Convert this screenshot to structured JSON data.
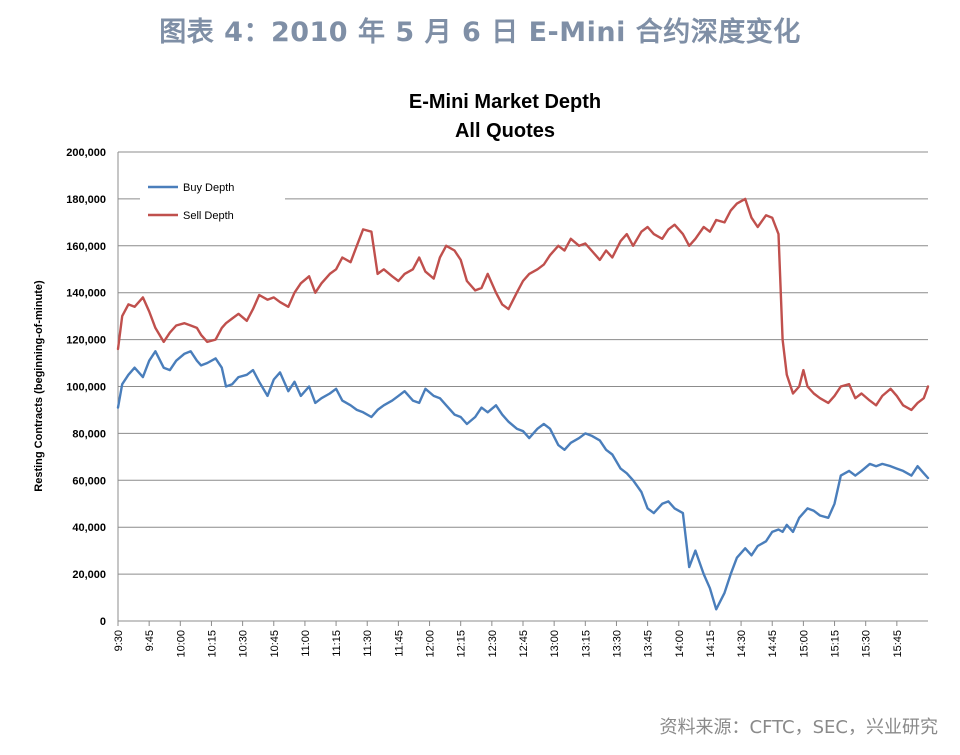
{
  "figure_title": "图表 4：2010 年 5 月 6 日 E-Mini 合约深度变化",
  "source_note": "资料来源：CFTC，SEC，兴业研究",
  "chart_data": {
    "type": "line",
    "title": "E-Mini Market Depth",
    "subtitle": "All Quotes",
    "xlabel": "",
    "ylabel": "Resting Contracts (beginning-of-minute)",
    "ylim": [
      0,
      200000
    ],
    "yticks": [
      0,
      20000,
      40000,
      60000,
      80000,
      100000,
      120000,
      140000,
      160000,
      180000,
      200000
    ],
    "ytick_labels": [
      "0",
      "20,000",
      "40,000",
      "60,000",
      "80,000",
      "100,000",
      "120,000",
      "140,000",
      "160,000",
      "180,000",
      "200,000"
    ],
    "x_unit": "minutes since 9:30",
    "xlim": [
      0,
      390
    ],
    "xtick_labels": [
      "9:30",
      "9:45",
      "10:00",
      "10:15",
      "10:30",
      "10:45",
      "11:00",
      "11:15",
      "11:30",
      "11:45",
      "12:00",
      "12:15",
      "12:30",
      "12:45",
      "13:00",
      "13:15",
      "13:30",
      "13:45",
      "14:00",
      "14:15",
      "14:30",
      "14:45",
      "15:00",
      "15:15",
      "15:30",
      "15:45"
    ],
    "grid": true,
    "legend": "top-left",
    "x": [
      0,
      2,
      5,
      8,
      12,
      15,
      18,
      22,
      25,
      28,
      32,
      35,
      38,
      40,
      43,
      47,
      50,
      52,
      55,
      58,
      62,
      65,
      68,
      72,
      75,
      78,
      82,
      85,
      88,
      92,
      95,
      98,
      102,
      105,
      108,
      112,
      115,
      118,
      122,
      125,
      128,
      132,
      135,
      138,
      142,
      145,
      148,
      152,
      155,
      158,
      162,
      165,
      168,
      172,
      175,
      178,
      182,
      185,
      188,
      192,
      195,
      198,
      202,
      205,
      208,
      212,
      215,
      218,
      222,
      225,
      228,
      232,
      235,
      238,
      242,
      245,
      248,
      252,
      255,
      258,
      262,
      265,
      268,
      272,
      275,
      278,
      282,
      285,
      288,
      292,
      295,
      298,
      302,
      305,
      308,
      312,
      315,
      318,
      320,
      322,
      325,
      328,
      330,
      332,
      335,
      338,
      342,
      345,
      348,
      352,
      355,
      358,
      362,
      365,
      368,
      372,
      375,
      378,
      382,
      385,
      388,
      390
    ],
    "series": [
      {
        "name": "Buy Depth",
        "color": "#4a7ebb",
        "values": [
          91000,
          101000,
          105000,
          108000,
          104000,
          111000,
          115000,
          108000,
          107000,
          111000,
          114000,
          115000,
          111000,
          109000,
          110000,
          112000,
          108000,
          100000,
          101000,
          104000,
          105000,
          107000,
          102000,
          96000,
          103000,
          106000,
          98000,
          102000,
          96000,
          100000,
          93000,
          95000,
          97000,
          99000,
          94000,
          92000,
          90000,
          89000,
          87000,
          90000,
          92000,
          94000,
          96000,
          98000,
          94000,
          93000,
          99000,
          96000,
          95000,
          92000,
          88000,
          87000,
          84000,
          87000,
          91000,
          89000,
          92000,
          88000,
          85000,
          82000,
          81000,
          78000,
          82000,
          84000,
          82000,
          75000,
          73000,
          76000,
          78000,
          80000,
          79000,
          77000,
          73000,
          71000,
          65000,
          63000,
          60000,
          55000,
          48000,
          46000,
          50000,
          51000,
          48000,
          46000,
          23000,
          30000,
          20000,
          14000,
          5000,
          12000,
          20000,
          27000,
          31000,
          28000,
          32000,
          34000,
          38000,
          39000,
          38000,
          41000,
          38000,
          44000,
          46000,
          48000,
          47000,
          45000,
          44000,
          50000,
          62000,
          64000,
          62000,
          64000,
          67000,
          66000,
          67000,
          66000,
          65000,
          64000,
          62000,
          66000,
          63000,
          61000
        ]
      },
      {
        "name": "Sell Depth",
        "color": "#c0504d",
        "values": [
          116000,
          130000,
          135000,
          134000,
          138000,
          132000,
          125000,
          119000,
          123000,
          126000,
          127000,
          126000,
          125000,
          122000,
          119000,
          120000,
          125000,
          127000,
          129000,
          131000,
          128000,
          133000,
          139000,
          137000,
          138000,
          136000,
          134000,
          140000,
          144000,
          147000,
          140000,
          144000,
          148000,
          150000,
          155000,
          153000,
          160000,
          167000,
          166000,
          148000,
          150000,
          147000,
          145000,
          148000,
          150000,
          155000,
          149000,
          146000,
          155000,
          160000,
          158000,
          154000,
          145000,
          141000,
          142000,
          148000,
          140000,
          135000,
          133000,
          140000,
          145000,
          148000,
          150000,
          152000,
          156000,
          160000,
          158000,
          163000,
          160000,
          161000,
          158000,
          154000,
          158000,
          155000,
          162000,
          165000,
          160000,
          166000,
          168000,
          165000,
          163000,
          167000,
          169000,
          165000,
          160000,
          163000,
          168000,
          166000,
          171000,
          170000,
          175000,
          178000,
          180000,
          172000,
          168000,
          173000,
          172000,
          165000,
          120000,
          105000,
          97000,
          100000,
          107000,
          100000,
          97000,
          95000,
          93000,
          96000,
          100000,
          101000,
          95000,
          97000,
          94000,
          92000,
          96000,
          99000,
          96000,
          92000,
          90000,
          93000,
          95000,
          100000
        ]
      }
    ]
  }
}
